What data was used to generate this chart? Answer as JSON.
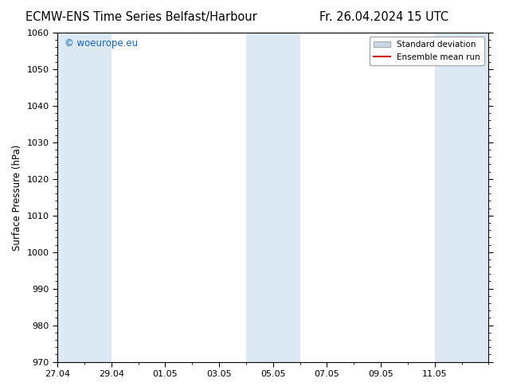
{
  "title_left": "ECMW-ENS Time Series Belfast/Harbour",
  "title_right": "Fr. 26.04.2024 15 UTC",
  "ylabel": "Surface Pressure (hPa)",
  "ylim": [
    970,
    1060
  ],
  "yticks": [
    970,
    980,
    990,
    1000,
    1010,
    1020,
    1030,
    1040,
    1050,
    1060
  ],
  "xtick_labels": [
    "27.04",
    "29.04",
    "01.05",
    "03.05",
    "05.05",
    "07.05",
    "09.05",
    "11.05"
  ],
  "shaded_color": "#dce9f5",
  "watermark_text": "© woeurope.eu",
  "watermark_color": "#1565C0",
  "legend_stddev_facecolor": "#c8d8e8",
  "legend_stddev_edgecolor": "#aaaaaa",
  "legend_mean_color": "#cc0000",
  "bg_color": "#ffffff",
  "spine_color": "#000000",
  "title_fontsize": 10.5,
  "label_fontsize": 8.5,
  "tick_fontsize": 8.0,
  "watermark_fontsize": 8.5
}
